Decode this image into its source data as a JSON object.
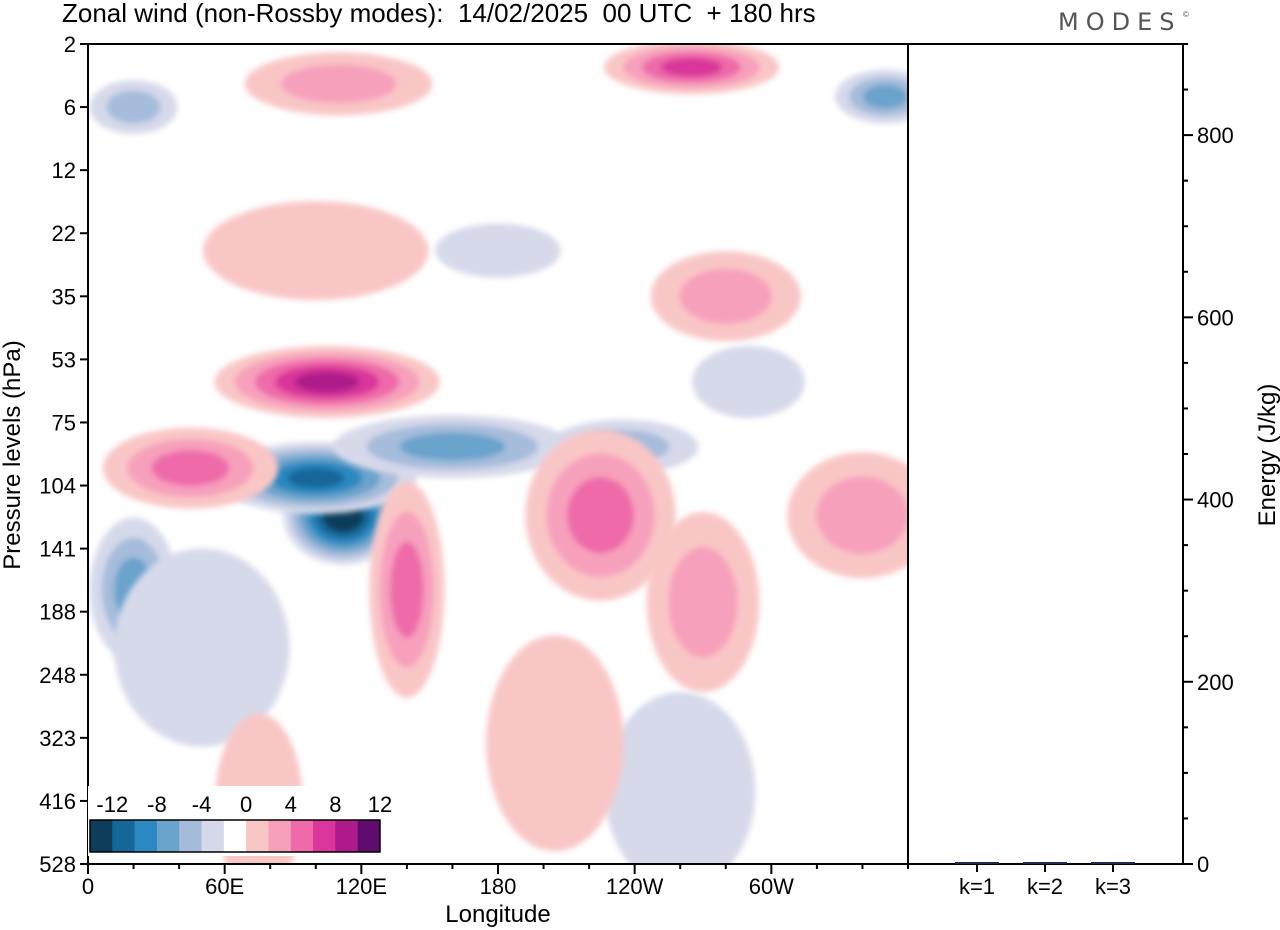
{
  "title": "Zonal wind (non-Rossby modes):  14/02/2025  00 UTC  + 180 hrs",
  "logo": "MODES",
  "chart_data": [
    {
      "type": "heatmap",
      "title": "Zonal wind (non-Rossby modes):  14/02/2025  00 UTC  + 180 hrs",
      "xlabel": "Longitude",
      "ylabel": "Pressure levels (hPa)",
      "x_ticks": [
        "0",
        "60E",
        "120E",
        "180",
        "120W",
        "60W"
      ],
      "x_tick_degrees": [
        0,
        60,
        120,
        180,
        240,
        300
      ],
      "xlim": [
        0,
        360
      ],
      "y_ticks": [
        "2",
        "6",
        "12",
        "22",
        "35",
        "53",
        "75",
        "104",
        "141",
        "188",
        "248",
        "323",
        "416",
        "528"
      ],
      "colorbar": {
        "labels": [
          "-12",
          "-8",
          "-4",
          "0",
          "4",
          "8",
          "12"
        ],
        "levels": [
          -14,
          -12,
          -10,
          -8,
          -6,
          -4,
          -2,
          2,
          4,
          6,
          8,
          10,
          12,
          14
        ],
        "colors": [
          "#0d3d5a",
          "#15679a",
          "#2b88c0",
          "#6aa3cb",
          "#a6bcdb",
          "#d6d9ea",
          "#ffffff",
          "#f9c6c6",
          "#f7a0bc",
          "#ee6aa9",
          "#d9359a",
          "#ad1a8a",
          "#5e0c6e"
        ]
      },
      "blobs": [
        {
          "lon": 112,
          "p": 120,
          "value": -14,
          "rx": 48,
          "ry": 55
        },
        {
          "lon": 100,
          "p": 100,
          "value": -11,
          "rx": 80,
          "ry": 40
        },
        {
          "lon": 160,
          "p": 85,
          "value": -7,
          "rx": 95,
          "ry": 35
        },
        {
          "lon": 235,
          "p": 85,
          "value": -4,
          "rx": 60,
          "ry": 30
        },
        {
          "lon": 20,
          "p": 170,
          "value": -6,
          "rx": 35,
          "ry": 80
        },
        {
          "lon": 50,
          "p": 220,
          "value": -3,
          "rx": 70,
          "ry": 110
        },
        {
          "lon": 105,
          "p": 60,
          "value": 11,
          "rx": 90,
          "ry": 40
        },
        {
          "lon": 45,
          "p": 95,
          "value": 6,
          "rx": 70,
          "ry": 45
        },
        {
          "lon": 140,
          "p": 170,
          "value": 6,
          "rx": 30,
          "ry": 120
        },
        {
          "lon": 225,
          "p": 120,
          "value": 6,
          "rx": 60,
          "ry": 95
        },
        {
          "lon": 270,
          "p": 180,
          "value": 5,
          "rx": 45,
          "ry": 100
        },
        {
          "lon": 340,
          "p": 120,
          "value": 5,
          "rx": 60,
          "ry": 70
        },
        {
          "lon": 110,
          "p": 4,
          "value": 4,
          "rx": 75,
          "ry": 35
        },
        {
          "lon": 265,
          "p": 3,
          "value": 8,
          "rx": 70,
          "ry": 30
        },
        {
          "lon": 100,
          "p": 25,
          "value": 2,
          "rx": 90,
          "ry": 55
        },
        {
          "lon": 280,
          "p": 35,
          "value": 4,
          "rx": 60,
          "ry": 50
        },
        {
          "lon": 350,
          "p": 5,
          "value": -6,
          "rx": 40,
          "ry": 30
        },
        {
          "lon": 20,
          "p": 6,
          "value": -4,
          "rx": 35,
          "ry": 30
        },
        {
          "lon": 180,
          "p": 25,
          "value": -3,
          "rx": 50,
          "ry": 30
        },
        {
          "lon": 290,
          "p": 60,
          "value": -3,
          "rx": 45,
          "ry": 40
        },
        {
          "lon": 260,
          "p": 400,
          "value": -3,
          "rx": 60,
          "ry": 110
        },
        {
          "lon": 75,
          "p": 420,
          "value": 3,
          "rx": 35,
          "ry": 100
        },
        {
          "lon": 205,
          "p": 330,
          "value": 2,
          "rx": 55,
          "ry": 120
        }
      ]
    },
    {
      "type": "bar",
      "categories": [
        "k=1",
        "k=2",
        "k=3"
      ],
      "values": [
        0.5,
        0.3,
        0.3
      ],
      "ylabel": "Energy (J/kg)",
      "ylim": [
        0,
        900
      ],
      "y_ticks": [
        0,
        200,
        400,
        600,
        800
      ]
    }
  ]
}
